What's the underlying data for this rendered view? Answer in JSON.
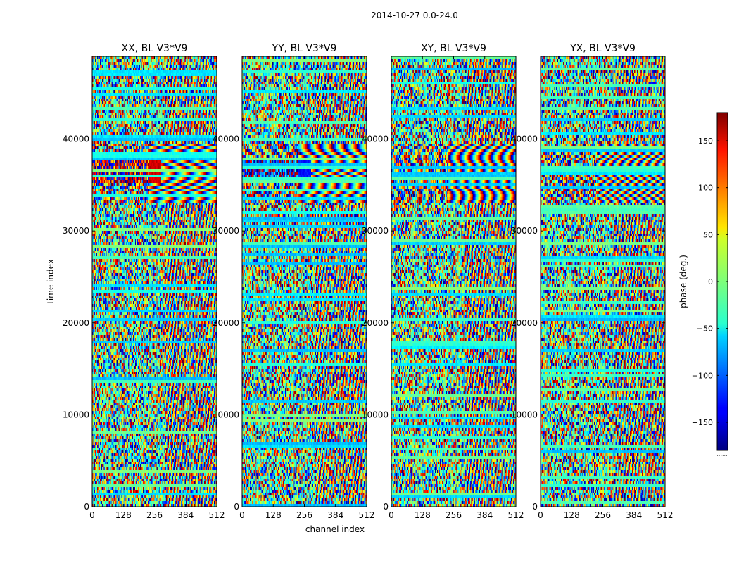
{
  "chart_data": {
    "type": "heatmap",
    "suptitle": "2014-10-27 0.0-24.0",
    "xlabel": "channel index",
    "ylabel": "time index",
    "xlim": [
      0,
      512
    ],
    "ylim": [
      0,
      49000
    ],
    "xticks": [
      0,
      128,
      256,
      384,
      512
    ],
    "xtick_labels": [
      "0",
      "128",
      "256",
      "384",
      "512"
    ],
    "yticks": [
      0,
      10000,
      20000,
      30000,
      40000
    ],
    "ytick_labels": [
      "0",
      "10000",
      "20000",
      "30000",
      "40000"
    ],
    "panels": [
      {
        "title": "XX, BL V3*V9",
        "polarization": "XX"
      },
      {
        "title": "YY, BL V3*V9",
        "polarization": "YY"
      },
      {
        "title": "XY, BL V3*V9",
        "polarization": "XY"
      },
      {
        "title": "YX, BL V3*V9",
        "polarization": "YX"
      }
    ],
    "colorbar": {
      "label": "phase (deg.)",
      "colormap": "jet",
      "vmin": -180,
      "vmax": 180,
      "ticks": [
        -150,
        -100,
        -50,
        0,
        50,
        100,
        150
      ],
      "tick_labels": [
        "−150",
        "−100",
        "−50",
        "0",
        "50",
        "100",
        "150"
      ],
      "footer": "......"
    }
  }
}
